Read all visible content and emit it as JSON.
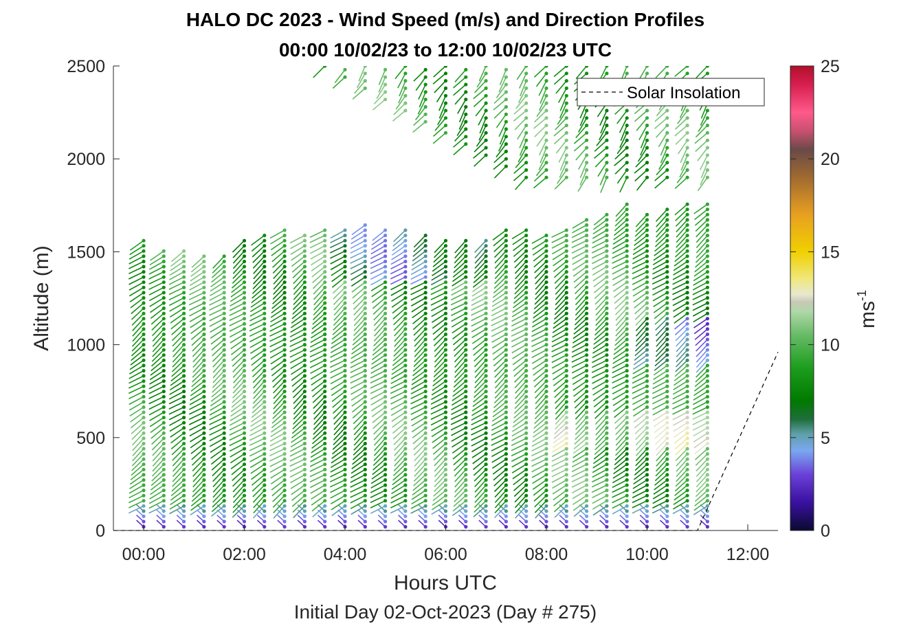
{
  "chart_data": {
    "type": "wind_barb_profile",
    "title": "HALO DC 2023 - Wind Speed (m/s) and Direction Profiles",
    "subtitle": "00:00 10/02/23 to 12:00 10/02/23  UTC",
    "xlabel": "Hours UTC",
    "xlabel2": "Initial Day 02-Oct-2023 (Day # 275)",
    "ylabel": "Altitude (m)",
    "xlim_hours": [
      -0.6,
      12.6
    ],
    "ylim": [
      0,
      2500
    ],
    "x_ticks": [
      {
        "value": 0,
        "label": "00:00"
      },
      {
        "value": 2,
        "label": "02:00"
      },
      {
        "value": 4,
        "label": "04:00"
      },
      {
        "value": 6,
        "label": "06:00"
      },
      {
        "value": 8,
        "label": "08:00"
      },
      {
        "value": 10,
        "label": "10:00"
      },
      {
        "value": 12,
        "label": "12:00"
      }
    ],
    "y_ticks": [
      {
        "value": 0,
        "label": "0"
      },
      {
        "value": 500,
        "label": "500"
      },
      {
        "value": 1000,
        "label": "1000"
      },
      {
        "value": 1500,
        "label": "1500"
      },
      {
        "value": 2000,
        "label": "2000"
      },
      {
        "value": 2500,
        "label": "2500"
      }
    ],
    "colorbar": {
      "label": "ms",
      "label_exponent": "-1",
      "range": [
        0,
        25
      ],
      "ticks": [
        {
          "value": 0,
          "label": "0"
        },
        {
          "value": 5,
          "label": "5"
        },
        {
          "value": 10,
          "label": "10"
        },
        {
          "value": 15,
          "label": "15"
        },
        {
          "value": 20,
          "label": "20"
        },
        {
          "value": 25,
          "label": "25"
        }
      ],
      "stops": [
        {
          "v": 0,
          "c": "#0a0a30"
        },
        {
          "v": 1.5,
          "c": "#3a10a0"
        },
        {
          "v": 3,
          "c": "#6a40d8"
        },
        {
          "v": 4.3,
          "c": "#7aa8f0"
        },
        {
          "v": 5.2,
          "c": "#5e9fa8"
        },
        {
          "v": 6,
          "c": "#1e6e3a"
        },
        {
          "v": 7,
          "c": "#007a00"
        },
        {
          "v": 8.8,
          "c": "#1e9e1e"
        },
        {
          "v": 10.5,
          "c": "#66bb66"
        },
        {
          "v": 11.8,
          "c": "#b0d8a8"
        },
        {
          "v": 12.3,
          "c": "#c8c8b8"
        },
        {
          "v": 12.7,
          "c": "#e8e8d0"
        },
        {
          "v": 13.5,
          "c": "#f0e880"
        },
        {
          "v": 15,
          "c": "#f0d000"
        },
        {
          "v": 17,
          "c": "#e8a020"
        },
        {
          "v": 19,
          "c": "#a06a30"
        },
        {
          "v": 20.5,
          "c": "#6a4a48"
        },
        {
          "v": 21.5,
          "c": "#c85070"
        },
        {
          "v": 22.5,
          "c": "#ff5a8a"
        },
        {
          "v": 24,
          "c": "#d81e50"
        },
        {
          "v": 25,
          "c": "#b0102a"
        }
      ]
    },
    "legend": {
      "label": "Solar Insolation",
      "style": "dashed",
      "position": "top-right"
    },
    "profiles": {
      "time_start_hours": 0.0,
      "time_step_hours": 0.4,
      "count": 29,
      "low_max_altitude_by_index": [
        1560,
        1520,
        1520,
        1500,
        1480,
        1560,
        1600,
        1640,
        1600,
        1620,
        1640,
        1660,
        1640,
        1620,
        1600,
        1580,
        1560,
        1560,
        1640,
        1620,
        1600,
        1620,
        1680,
        1720,
        1760,
        1720,
        1740,
        1760,
        1760
      ],
      "high_layer_altitude_range": [
        1900,
        2500
      ],
      "surface_speed_ms": 2.5,
      "mid_speed_ms": 9
    },
    "solar_insolation": {
      "x_hours": [
        -0.6,
        11.0,
        12.6
      ],
      "y_altitude": [
        0,
        0,
        960
      ]
    }
  }
}
